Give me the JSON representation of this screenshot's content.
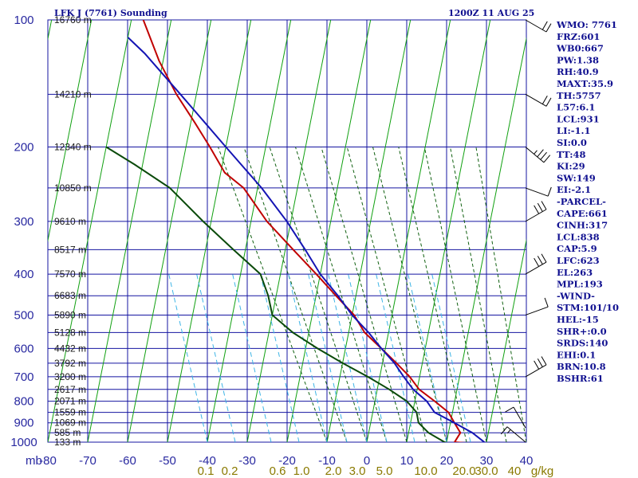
{
  "title_left": "LFK J (7761) Sounding",
  "title_right": "1200Z 11 AUG 25",
  "colors": {
    "grid": "#1414a0",
    "dry_adiabat": "#10a010",
    "moist_adiabat": "#106010",
    "mixing_ratio": "#3cb4e6",
    "temperature": "#c00000",
    "virtual_temp": "#1414b4",
    "dewpoint": "#0a4a0a",
    "wind": "#000000"
  },
  "chart_data": {
    "type": "line",
    "subtype": "skew-t log-p sounding",
    "title": "LFK J (7761) Sounding",
    "subtitle": "1200Z 11 AUG 25",
    "x_unit_label": "mb",
    "xlim": [
      -80,
      40
    ],
    "ylim": [
      1000,
      100
    ],
    "y_scale": "log (inverted)",
    "temperature_ticks": [
      "-80",
      "-70",
      "-60",
      "-50",
      "-40",
      "-30",
      "-20",
      "-10",
      "0",
      "10",
      "20",
      "30",
      "40"
    ],
    "pressure_ticks": [
      "100",
      "200",
      "300",
      "400",
      "500",
      "600",
      "700",
      "800",
      "900",
      "1000"
    ],
    "mixing_ratio_labels": [
      "0.1",
      "0.2",
      "0.6",
      "1.0",
      "2.0",
      "3.0",
      "5.0",
      "10.0",
      "20.0",
      "30.0",
      "40"
    ],
    "mixing_ratio_unit": "g/kg",
    "height_labels": [
      {
        "p": 100,
        "text": "16760 m"
      },
      {
        "p": 150,
        "text": "14210 m"
      },
      {
        "p": 200,
        "text": "12340 m"
      },
      {
        "p": 250,
        "text": "10850 m"
      },
      {
        "p": 300,
        "text": "9610 m"
      },
      {
        "p": 350,
        "text": "8517 m"
      },
      {
        "p": 400,
        "text": "7570 m"
      },
      {
        "p": 450,
        "text": "6683 m"
      },
      {
        "p": 500,
        "text": "5890 m"
      },
      {
        "p": 550,
        "text": "5128 m"
      },
      {
        "p": 600,
        "text": "4432 m"
      },
      {
        "p": 650,
        "text": "3792 m"
      },
      {
        "p": 700,
        "text": "3200 m"
      },
      {
        "p": 750,
        "text": "2617 m"
      },
      {
        "p": 800,
        "text": "2071 m"
      },
      {
        "p": 850,
        "text": "1559 m"
      },
      {
        "p": 900,
        "text": "1069 m"
      },
      {
        "p": 950,
        "text": "585 m"
      },
      {
        "p": 1000,
        "text": "133 m"
      }
    ],
    "series": [
      {
        "key": "temperature",
        "points": [
          {
            "p": 1008,
            "t": 27
          },
          {
            "p": 1000,
            "t": 22
          },
          {
            "p": 950,
            "t": 23
          },
          {
            "p": 900,
            "t": 21
          },
          {
            "p": 850,
            "t": 19
          },
          {
            "p": 800,
            "t": 15
          },
          {
            "p": 750,
            "t": 10.5
          },
          {
            "p": 700,
            "t": 7.5
          },
          {
            "p": 650,
            "t": 3.5
          },
          {
            "p": 600,
            "t": -1
          },
          {
            "p": 550,
            "t": -6
          },
          {
            "p": 500,
            "t": -9.5
          },
          {
            "p": 450,
            "t": -15
          },
          {
            "p": 400,
            "t": -21
          },
          {
            "p": 350,
            "t": -28
          },
          {
            "p": 300,
            "t": -36
          },
          {
            "p": 250,
            "t": -43.5
          },
          {
            "p": 230,
            "t": -49
          },
          {
            "p": 200,
            "t": -54
          },
          {
            "p": 175,
            "t": -59
          },
          {
            "p": 150,
            "t": -65
          },
          {
            "p": 125,
            "t": -71
          },
          {
            "p": 100,
            "t": -77
          }
        ]
      },
      {
        "key": "virtual_temperature",
        "points": [
          {
            "p": 1008,
            "t": 30
          },
          {
            "p": 950,
            "t": 26
          },
          {
            "p": 900,
            "t": 21
          },
          {
            "p": 850,
            "t": 15.5
          },
          {
            "p": 800,
            "t": 13
          },
          {
            "p": 750,
            "t": 9
          },
          {
            "p": 700,
            "t": 6
          },
          {
            "p": 650,
            "t": 3
          },
          {
            "p": 600,
            "t": -1
          },
          {
            "p": 550,
            "t": -5
          },
          {
            "p": 500,
            "t": -10
          },
          {
            "p": 450,
            "t": -14.5
          },
          {
            "p": 400,
            "t": -20
          },
          {
            "p": 350,
            "t": -25
          },
          {
            "p": 300,
            "t": -31
          },
          {
            "p": 250,
            "t": -39
          },
          {
            "p": 200,
            "t": -50
          },
          {
            "p": 150,
            "t": -64
          },
          {
            "p": 120,
            "t": -75
          },
          {
            "p": 110,
            "t": -80
          }
        ]
      },
      {
        "key": "dewpoint",
        "points": [
          {
            "p": 1008,
            "t": 21
          },
          {
            "p": 1000,
            "t": 19.5
          },
          {
            "p": 950,
            "t": 15
          },
          {
            "p": 900,
            "t": 12
          },
          {
            "p": 850,
            "t": 11
          },
          {
            "p": 800,
            "t": 8
          },
          {
            "p": 750,
            "t": 3
          },
          {
            "p": 700,
            "t": -3
          },
          {
            "p": 650,
            "t": -10
          },
          {
            "p": 600,
            "t": -17
          },
          {
            "p": 550,
            "t": -24
          },
          {
            "p": 500,
            "t": -30
          },
          {
            "p": 450,
            "t": -32
          },
          {
            "p": 400,
            "t": -35
          },
          {
            "p": 350,
            "t": -43
          },
          {
            "p": 300,
            "t": -52
          },
          {
            "p": 250,
            "t": -62
          },
          {
            "p": 220,
            "t": -72
          },
          {
            "p": 200,
            "t": -80
          }
        ]
      }
    ],
    "wind_barbs": [
      {
        "p": 100,
        "dir": 300,
        "speed": 20
      },
      {
        "p": 150,
        "dir": 300,
        "speed": 20
      },
      {
        "p": 200,
        "dir": 310,
        "speed": 25
      },
      {
        "p": 250,
        "dir": 290,
        "speed": 10
      },
      {
        "p": 300,
        "dir": 240,
        "speed": 30
      },
      {
        "p": 400,
        "dir": 240,
        "speed": 30
      },
      {
        "p": 500,
        "dir": 250,
        "speed": 10
      },
      {
        "p": 700,
        "dir": 240,
        "speed": 30
      },
      {
        "p": 925,
        "dir": 150,
        "speed": 10
      },
      {
        "p": 1000,
        "dir": 130,
        "speed": 5
      }
    ]
  },
  "indices": [
    "WMO: 7761",
    "FRZ:601",
    "WB0:667",
    "PW:1.38",
    "RH:40.9",
    "MAXT:35.9",
    "TH:5757",
    "L57:6.1",
    "LCL:931",
    "LI:-1.1",
    "SI:0.0",
    "TT:48",
    "KI:29",
    "SW:149",
    "EI:-2.1",
    "-PARCEL-",
    "CAPE:661",
    "CINH:317",
    "LCL:838",
    "CAP:5.9",
    "LFC:623",
    "EL:263",
    "MPL:193",
    "-WIND-",
    "STM:101/10",
    "HEL:-15",
    "SHR+:0.0",
    "SRDS:140",
    "EHI:0.1",
    "BRN:10.8",
    "BSHR:61"
  ]
}
